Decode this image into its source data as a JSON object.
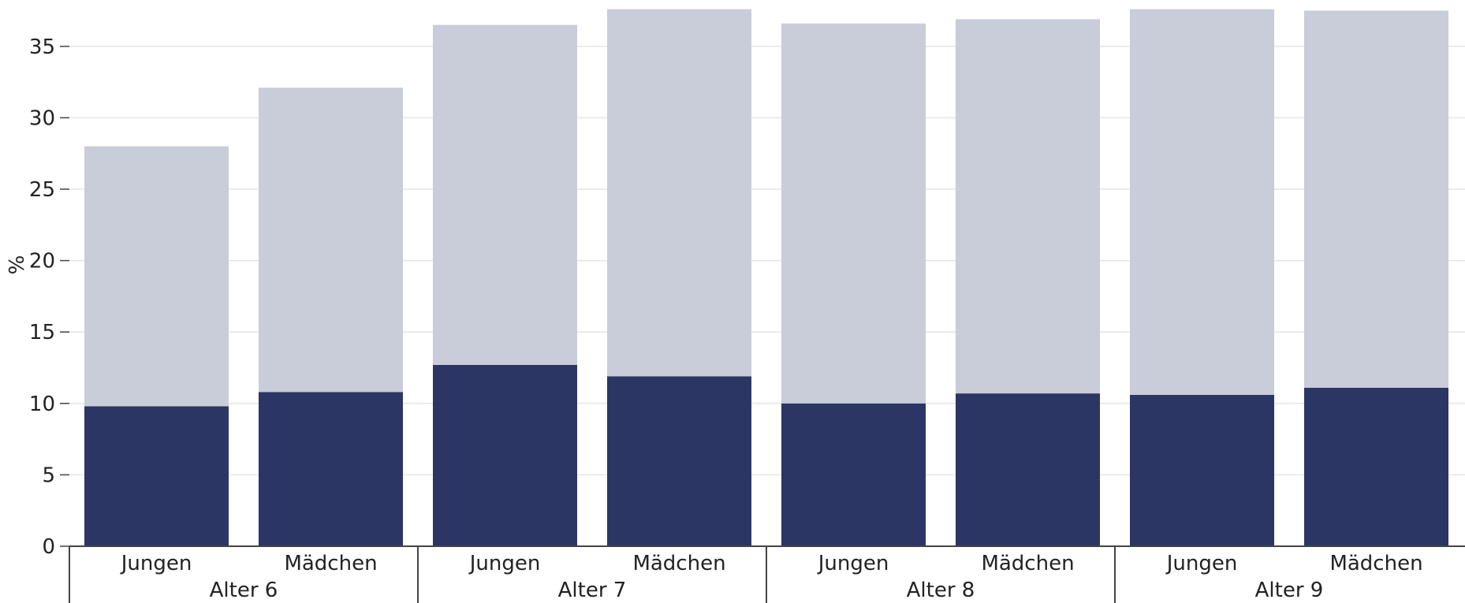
{
  "chart_data": {
    "type": "bar",
    "stacked": true,
    "ylabel": "%",
    "xlabel": "",
    "ylim": [
      0,
      37.6
    ],
    "yticks": [
      0,
      5,
      10,
      15,
      20,
      25,
      30,
      35
    ],
    "grid": true,
    "groups": [
      {
        "label": "Alter 6",
        "categories": [
          "Jungen",
          "Mädchen"
        ]
      },
      {
        "label": "Alter 7",
        "categories": [
          "Jungen",
          "Mädchen"
        ]
      },
      {
        "label": "Alter 8",
        "categories": [
          "Jungen",
          "Mädchen"
        ]
      },
      {
        "label": "Alter 9",
        "categories": [
          "Jungen",
          "Mädchen"
        ]
      }
    ],
    "series": [
      {
        "color": "#2b3664",
        "values": [
          9.8,
          10.8,
          12.7,
          11.9,
          10.0,
          10.7,
          10.6,
          11.1
        ]
      },
      {
        "color": "#c9ccd9",
        "values": [
          18.2,
          21.3,
          23.8,
          25.7,
          26.6,
          26.2,
          27.0,
          26.4
        ]
      }
    ]
  }
}
